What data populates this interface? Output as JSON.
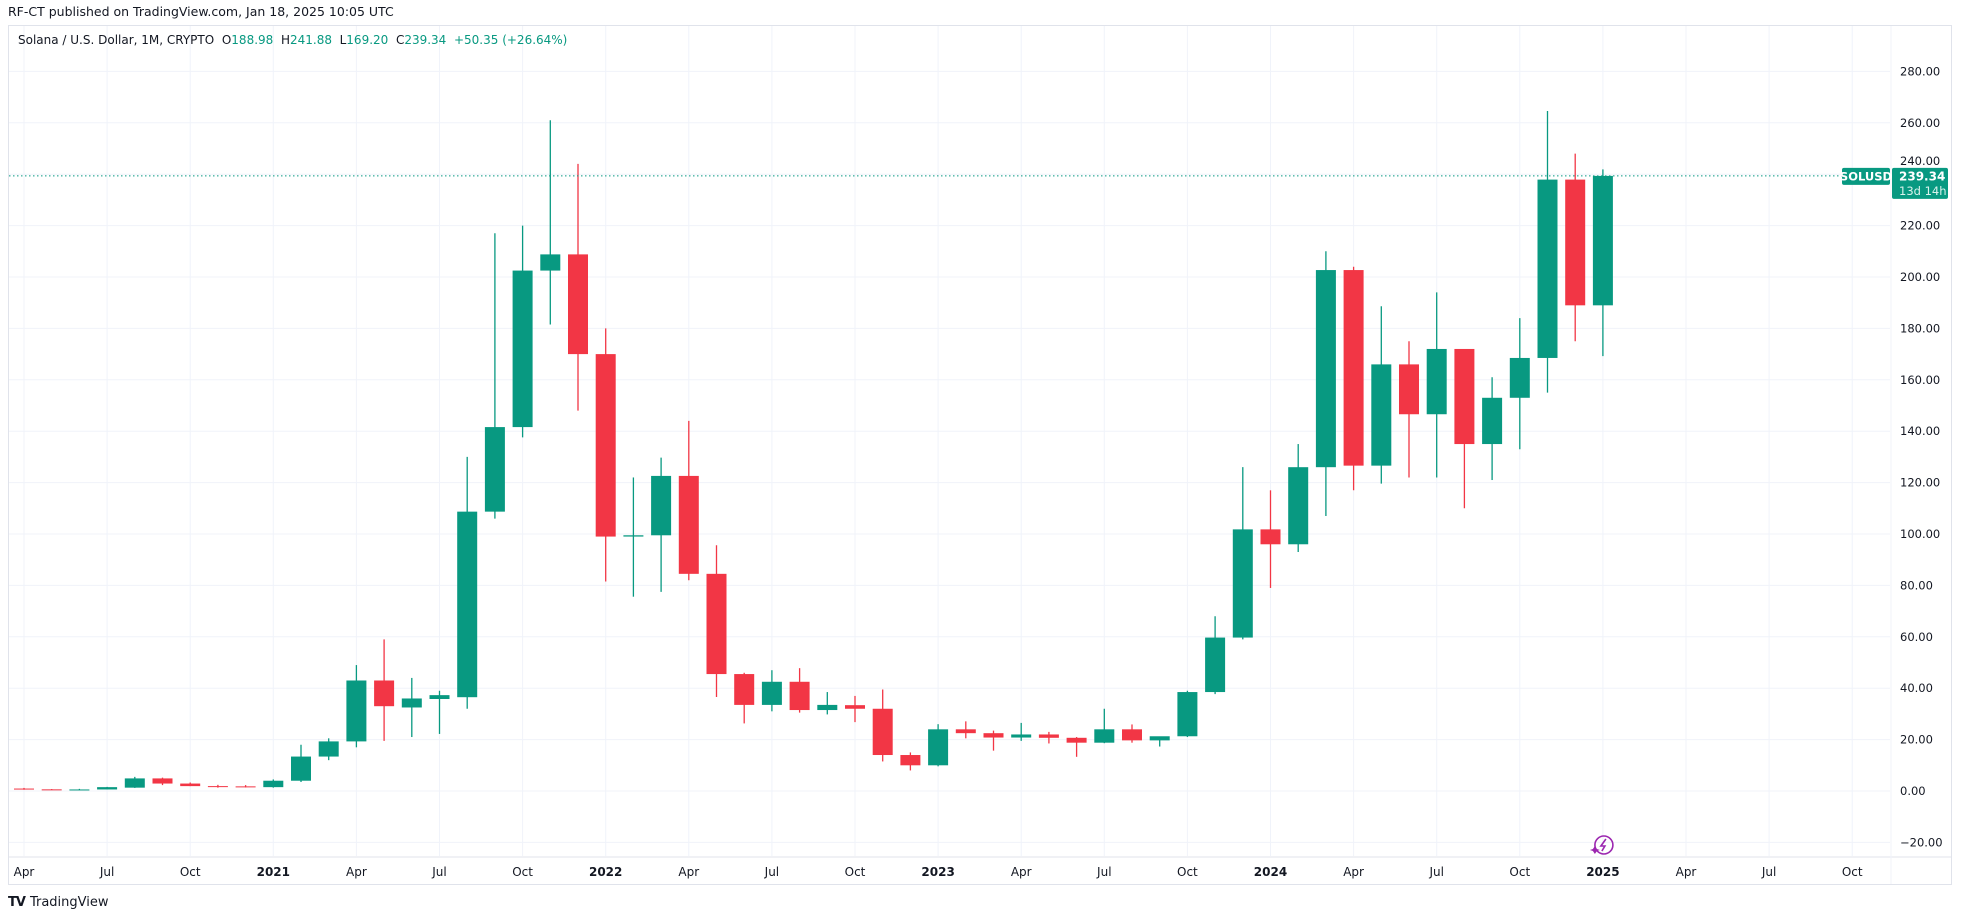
{
  "header": {
    "published": "RF-CT published on TradingView.com, Jan 18, 2025 10:05 UTC"
  },
  "legend": {
    "symbol": "Solana / U.S. Dollar, 1M, CRYPTO",
    "o_label": "O",
    "o_value": "188.98",
    "h_label": "H",
    "h_value": "241.88",
    "l_label": "L",
    "l_value": "169.20",
    "c_label": "C",
    "c_value": "239.34",
    "change": "+50.35 (+26.64%)"
  },
  "price_label": {
    "symbol": "SOLUSD",
    "price": "239.34",
    "countdown": "13d 14h"
  },
  "footer": {
    "brand": "TradingView"
  },
  "colors": {
    "up": "#089981",
    "down": "#F23645",
    "grid": "#f0f3fa",
    "text": "#131722",
    "event_icon": "#9c27b0"
  },
  "chart_data": {
    "type": "candlestick",
    "title": "",
    "series_name": "SOLUSD",
    "interval": "1M",
    "ylim": [
      -20,
      280
    ],
    "grid": true,
    "last_price": 239.34,
    "y_ticks": [
      "280.00",
      "260.00",
      "240.00",
      "220.00",
      "200.00",
      "180.00",
      "160.00",
      "140.00",
      "120.00",
      "100.00",
      "80.00",
      "60.00",
      "40.00",
      "20.00",
      "0.00",
      "−20.00"
    ],
    "y_tick_values": [
      280,
      260,
      240,
      220,
      200,
      180,
      160,
      140,
      120,
      100,
      80,
      60,
      40,
      20,
      0,
      -20
    ],
    "x_ticks": [
      "Apr",
      "Jul",
      "Oct",
      "2021",
      "Apr",
      "Jul",
      "Oct",
      "2022",
      "Apr",
      "Jul",
      "Oct",
      "2023",
      "Apr",
      "Jul",
      "Oct",
      "2024",
      "Apr",
      "Jul",
      "Oct",
      "2025",
      "Apr",
      "Jul",
      "Oct"
    ],
    "x_tick_dates": [
      "2020-04",
      "2020-07",
      "2020-10",
      "2021-01",
      "2021-04",
      "2021-07",
      "2021-10",
      "2022-01",
      "2022-04",
      "2022-07",
      "2022-10",
      "2023-01",
      "2023-04",
      "2023-07",
      "2023-10",
      "2024-01",
      "2024-04",
      "2024-07",
      "2024-10",
      "2025-01",
      "2025-04",
      "2025-07",
      "2025-10"
    ],
    "candle_fields": [
      "date",
      "open",
      "high",
      "low",
      "close"
    ],
    "candles": [
      [
        "2020-04",
        0.95,
        1.2,
        0.5,
        0.64
      ],
      [
        "2020-05",
        0.64,
        0.75,
        0.5,
        0.56
      ],
      [
        "2020-06",
        0.56,
        0.83,
        0.5,
        0.6
      ],
      [
        "2020-07",
        0.6,
        1.6,
        0.6,
        1.5
      ],
      [
        "2020-08",
        1.3,
        5.5,
        1.2,
        4.9
      ],
      [
        "2020-09",
        4.9,
        5.2,
        2.3,
        2.9
      ],
      [
        "2020-10",
        2.9,
        3.3,
        1.9,
        1.9
      ],
      [
        "2020-11",
        1.9,
        2.4,
        1.3,
        1.8
      ],
      [
        "2020-12",
        1.8,
        2.3,
        1.4,
        1.5
      ],
      [
        "2021-01",
        1.5,
        4.5,
        1.3,
        4.0
      ],
      [
        "2021-02",
        4.0,
        18.0,
        3.5,
        13.4
      ],
      [
        "2021-03",
        13.4,
        20.5,
        12.0,
        19.3
      ],
      [
        "2021-04",
        19.3,
        49.0,
        17.0,
        43.0
      ],
      [
        "2021-05",
        43.0,
        59.0,
        19.5,
        33.0
      ],
      [
        "2021-06",
        32.5,
        44.0,
        21.0,
        36.0
      ],
      [
        "2021-07",
        35.8,
        39.0,
        22.2,
        37.3
      ],
      [
        "2021-08",
        36.5,
        130.0,
        32.0,
        108.7
      ],
      [
        "2021-09",
        108.7,
        217.0,
        106.0,
        141.6
      ],
      [
        "2021-10",
        141.6,
        220.0,
        137.6,
        202.5
      ],
      [
        "2021-11",
        202.5,
        261.0,
        181.5,
        208.8
      ],
      [
        "2021-12",
        208.8,
        244.0,
        148.0,
        170.0
      ],
      [
        "2022-01",
        170.0,
        180.0,
        81.5,
        99.0
      ],
      [
        "2022-02",
        99.0,
        122.0,
        75.6,
        99.5
      ],
      [
        "2022-03",
        99.5,
        129.7,
        77.5,
        122.6
      ],
      [
        "2022-04",
        122.6,
        144.0,
        82.0,
        84.5
      ],
      [
        "2022-05",
        84.5,
        95.6,
        36.6,
        45.5
      ],
      [
        "2022-06",
        45.5,
        46.0,
        26.3,
        33.5
      ],
      [
        "2022-07",
        33.5,
        47.0,
        31.0,
        42.5
      ],
      [
        "2022-08",
        42.5,
        47.8,
        30.5,
        31.5
      ],
      [
        "2022-09",
        31.5,
        38.5,
        29.8,
        33.5
      ],
      [
        "2022-10",
        33.4,
        37.0,
        26.8,
        32.0
      ],
      [
        "2022-11",
        32.0,
        39.5,
        11.5,
        14.0
      ],
      [
        "2022-12",
        14.0,
        15.0,
        8.0,
        10.0
      ],
      [
        "2023-01",
        10.0,
        26.0,
        9.6,
        24.0
      ],
      [
        "2023-02",
        24.0,
        27.1,
        20.5,
        22.5
      ],
      [
        "2023-03",
        22.5,
        23.5,
        15.7,
        20.8
      ],
      [
        "2023-04",
        20.8,
        26.5,
        19.5,
        22.0
      ],
      [
        "2023-05",
        22.0,
        23.0,
        18.5,
        20.7
      ],
      [
        "2023-06",
        20.7,
        21.0,
        13.3,
        18.8
      ],
      [
        "2023-07",
        18.8,
        32.0,
        18.6,
        24.0
      ],
      [
        "2023-08",
        24.0,
        25.9,
        18.8,
        19.7
      ],
      [
        "2023-09",
        19.7,
        21.0,
        17.3,
        21.3
      ],
      [
        "2023-10",
        21.3,
        39.0,
        21.0,
        38.5
      ],
      [
        "2023-11",
        38.5,
        68.0,
        37.7,
        59.7
      ],
      [
        "2023-12",
        59.7,
        126.0,
        59.0,
        101.8
      ],
      [
        "2024-01",
        101.8,
        117.0,
        79.0,
        96.0
      ],
      [
        "2024-02",
        96.0,
        135.0,
        93.0,
        126.0
      ],
      [
        "2024-03",
        126.0,
        210.0,
        107.0,
        202.7
      ],
      [
        "2024-04",
        202.7,
        204.0,
        117.0,
        126.6
      ],
      [
        "2024-05",
        126.6,
        188.6,
        119.6,
        166.0
      ],
      [
        "2024-06",
        166.0,
        175.0,
        122.0,
        146.6
      ],
      [
        "2024-07",
        146.6,
        194.0,
        122.0,
        172.0
      ],
      [
        "2024-08",
        172.0,
        172.0,
        110.0,
        135.0
      ],
      [
        "2024-09",
        135.0,
        161.0,
        121.0,
        153.0
      ],
      [
        "2024-10",
        153.0,
        184.0,
        133.0,
        168.5
      ],
      [
        "2024-11",
        168.5,
        264.6,
        155.0,
        237.9
      ],
      [
        "2024-12",
        237.9,
        248.0,
        175.0,
        188.98
      ],
      [
        "2025-01",
        188.98,
        241.88,
        169.2,
        239.34
      ]
    ]
  }
}
